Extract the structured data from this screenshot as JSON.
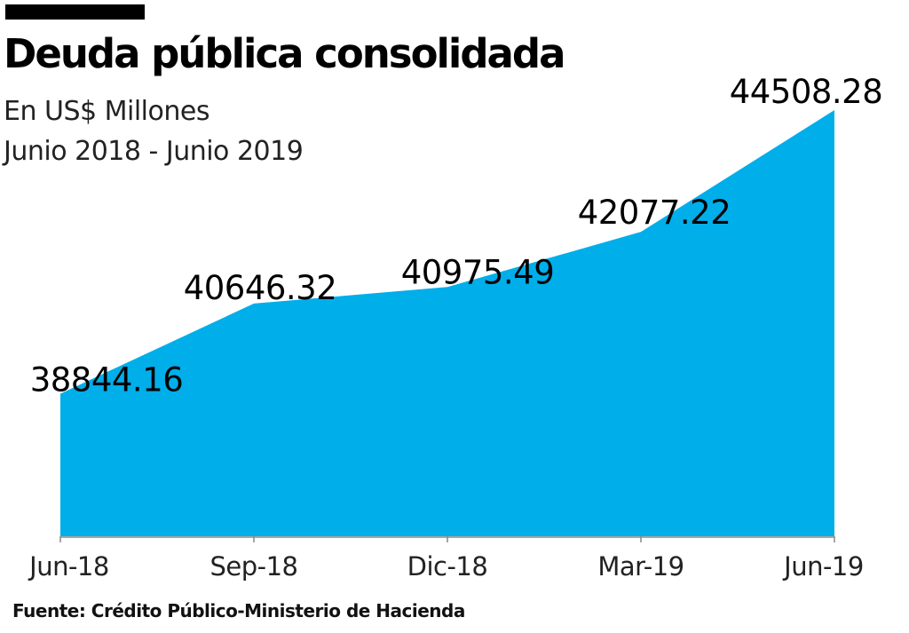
{
  "header": {
    "title": "Deuda pública consolidada",
    "subtitle_unit": "En US$ Millones",
    "subtitle_period": "Junio 2018 - Junio 2019"
  },
  "footer": {
    "source": "Fuente: Crédito Público-Ministerio de Hacienda"
  },
  "colors": {
    "area": "#00aeea",
    "axis": "#888888"
  },
  "chart_data": {
    "type": "area",
    "title": "Deuda pública consolidada",
    "xlabel": "",
    "ylabel": "En US$ Millones",
    "categories": [
      "Jun-18",
      "Sep-18",
      "Dic-18",
      "Mar-19",
      "Jun-19"
    ],
    "values": [
      38844.16,
      40646.32,
      40975.49,
      42077.22,
      44508.28
    ],
    "value_labels": [
      "38844.16",
      "40646.32",
      "40975.49",
      "42077.22",
      "44508.28"
    ],
    "ylim": [
      36000,
      44508.28
    ],
    "grid": false,
    "legend": "none"
  }
}
